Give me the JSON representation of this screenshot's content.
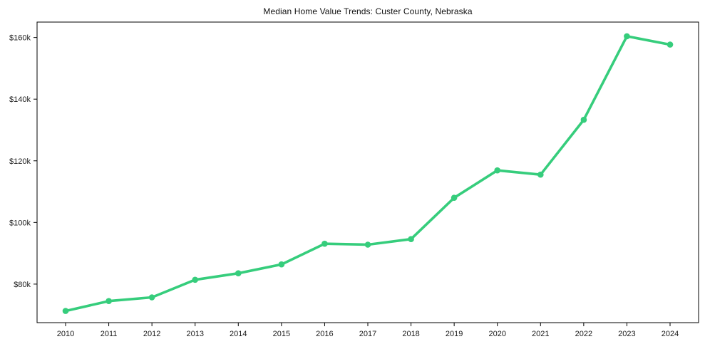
{
  "chart": {
    "title": "Median Home Value Trends: Custer County, Nebraska"
  },
  "chart_data": {
    "type": "line",
    "title": "Median Home Value Trends: Custer County, Nebraska",
    "x_labels": [
      "2010",
      "2011",
      "2012",
      "2013",
      "2014",
      "2015",
      "2016",
      "2017",
      "2018",
      "2019",
      "2020",
      "2021",
      "2022",
      "2023",
      "2024"
    ],
    "values": [
      71300,
      74500,
      75700,
      81400,
      83500,
      86400,
      93100,
      92800,
      94600,
      108000,
      116900,
      115500,
      133300,
      160400,
      157700
    ],
    "ylim": [
      67500,
      165000
    ],
    "yticks": [
      {
        "value": 80000,
        "label": "$80k"
      },
      {
        "value": 100000,
        "label": "$100k"
      },
      {
        "value": 120000,
        "label": "$120k"
      },
      {
        "value": 140000,
        "label": "$140k"
      },
      {
        "value": 160000,
        "label": "$160k"
      }
    ],
    "xlabel": "",
    "ylabel": "",
    "grid": false,
    "legend": "none",
    "marker": "circle",
    "line_color": "#36cd7c",
    "axis_color": "#000000",
    "text_color": "#1a1a1a",
    "background": "#ffffff"
  }
}
